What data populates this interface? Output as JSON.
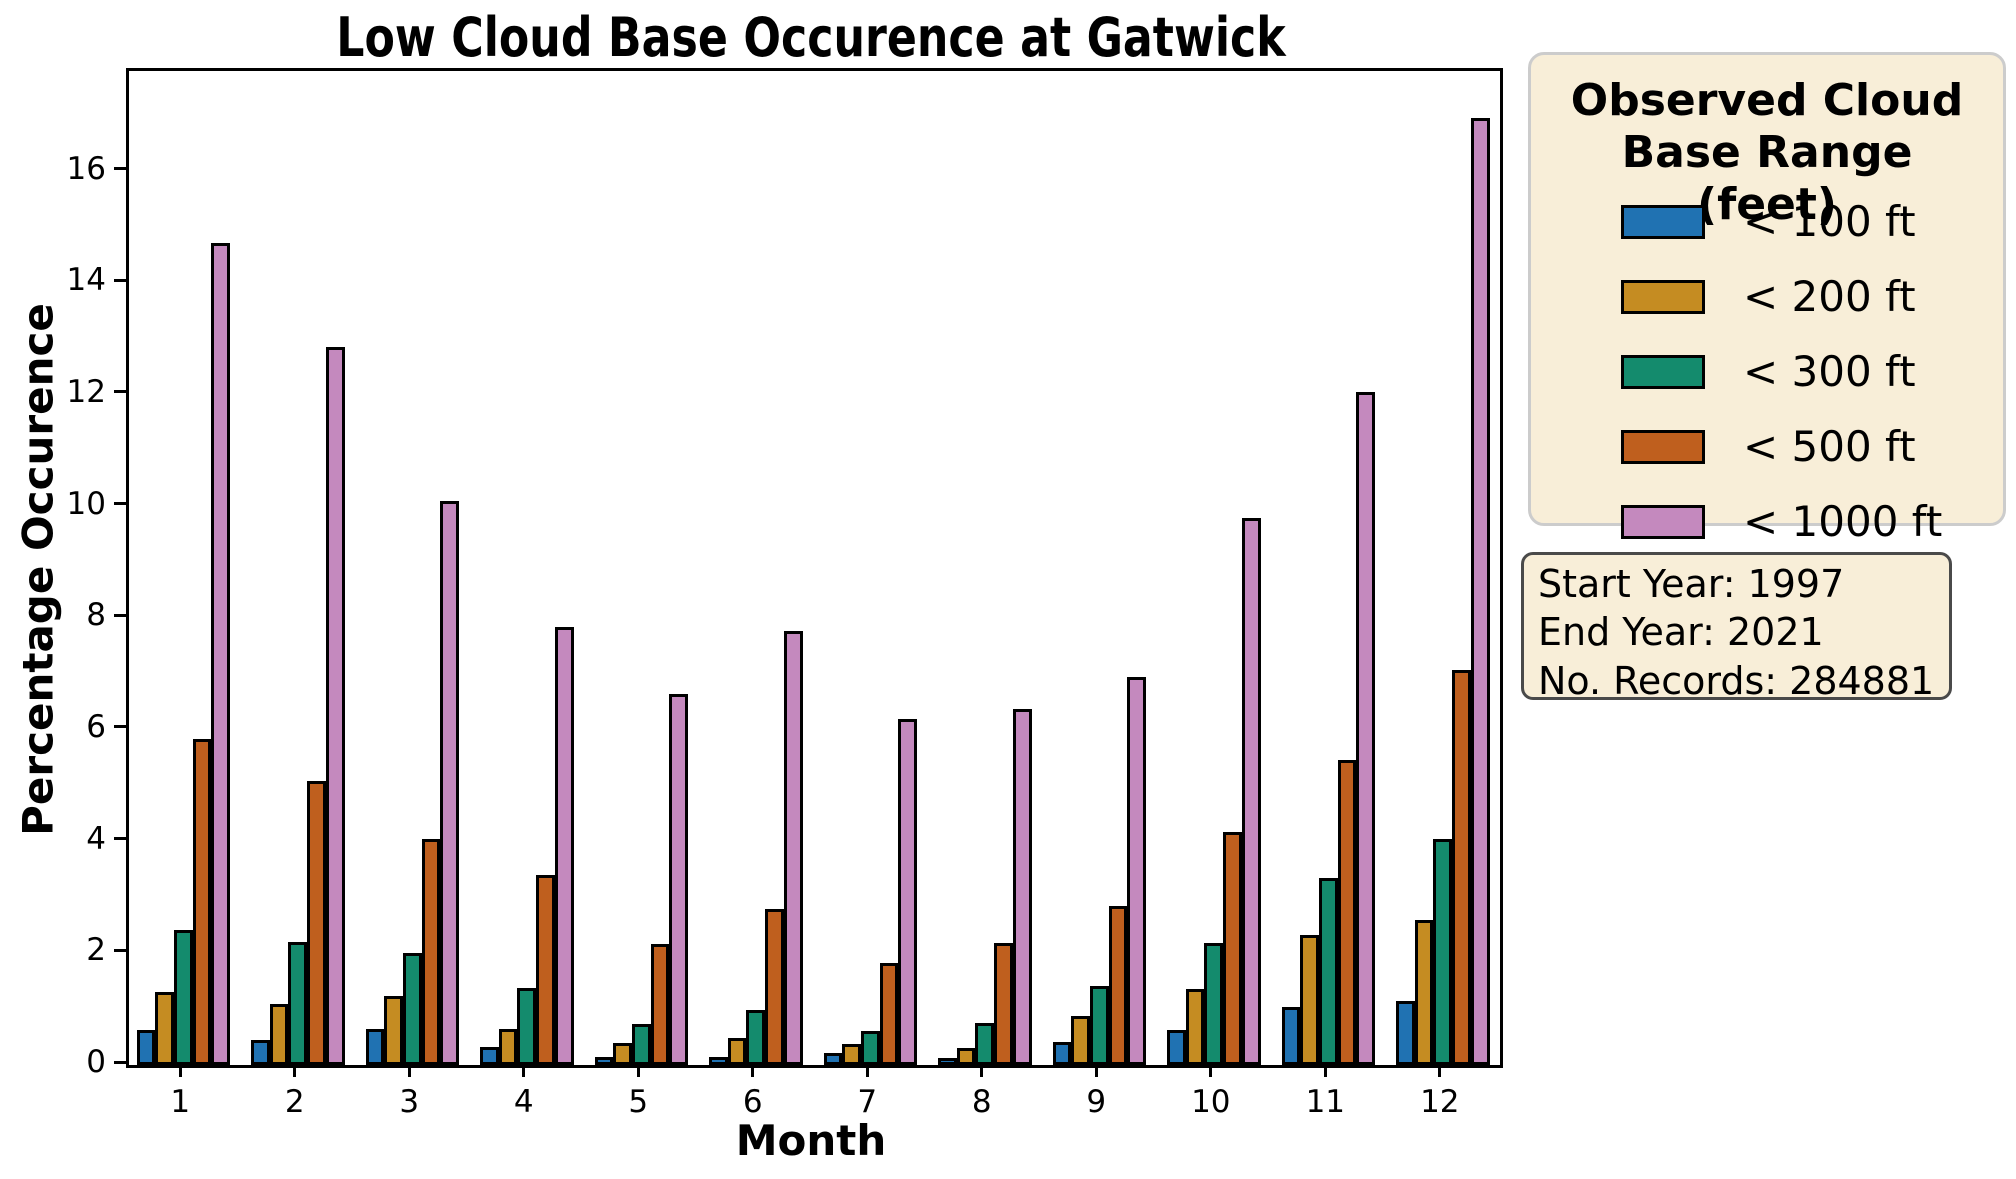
{
  "title": "Low Cloud Base Occurence at Gatwick",
  "axes": {
    "xlabel": "Month",
    "ylabel": "Percentage Occurence",
    "x_tick_labels": [
      "1",
      "2",
      "3",
      "4",
      "5",
      "6",
      "7",
      "8",
      "9",
      "10",
      "11",
      "12"
    ],
    "y_tick_values": [
      0,
      2,
      4,
      6,
      8,
      10,
      12,
      14,
      16
    ],
    "ymax": 17.8
  },
  "legend": {
    "title": "Observed Cloud Base Range (feet)",
    "items": [
      {
        "key": "lt100",
        "label": "< 100 ft",
        "color": "#2072b2"
      },
      {
        "key": "lt200",
        "label": "< 200 ft",
        "color": "#c58c22"
      },
      {
        "key": "lt300",
        "label": "< 300 ft",
        "color": "#148b6d"
      },
      {
        "key": "lt500",
        "label": "< 500 ft",
        "color": "#bf5f1e"
      },
      {
        "key": "lt1000",
        "label": "< 1000 ft",
        "color": "#c489be"
      }
    ],
    "background": "#f8eed8"
  },
  "info_box": {
    "lines": [
      "Start Year: 1997",
      "End Year: 2021",
      "No. Records: 284881"
    ]
  },
  "chart_data": {
    "type": "bar",
    "title": "Low Cloud Base Occurence at Gatwick",
    "xlabel": "Month",
    "ylabel": "Percentage Occurence",
    "categories": [
      1,
      2,
      3,
      4,
      5,
      6,
      7,
      8,
      9,
      10,
      11,
      12
    ],
    "ylim": [
      0,
      17.8
    ],
    "grid": false,
    "legend_position": "outside-right",
    "series": [
      {
        "name": "< 100 ft",
        "color": "#2072b2",
        "values": [
          0.62,
          0.44,
          0.64,
          0.32,
          0.14,
          0.15,
          0.21,
          0.13,
          0.42,
          0.62,
          1.03,
          1.14
        ]
      },
      {
        "name": "< 200 ft",
        "color": "#c58c22",
        "values": [
          1.31,
          1.1,
          1.24,
          0.65,
          0.39,
          0.48,
          0.37,
          0.31,
          0.88,
          1.36,
          2.32,
          2.59
        ]
      },
      {
        "name": "< 300 ft",
        "color": "#148b6d",
        "values": [
          2.41,
          2.2,
          2.01,
          1.37,
          0.74,
          0.98,
          0.6,
          0.75,
          1.41,
          2.19,
          3.35,
          4.05
        ]
      },
      {
        "name": "< 500 ft",
        "color": "#bf5f1e",
        "values": [
          5.83,
          5.08,
          4.04,
          3.4,
          2.16,
          2.79,
          1.82,
          2.19,
          2.84,
          4.18,
          5.46,
          7.07
        ]
      },
      {
        "name": "< 1000 ft",
        "color": "#c489be",
        "values": [
          14.72,
          12.86,
          10.1,
          7.85,
          6.64,
          7.78,
          6.19,
          6.38,
          6.94,
          9.8,
          12.06,
          16.95
        ]
      }
    ]
  }
}
